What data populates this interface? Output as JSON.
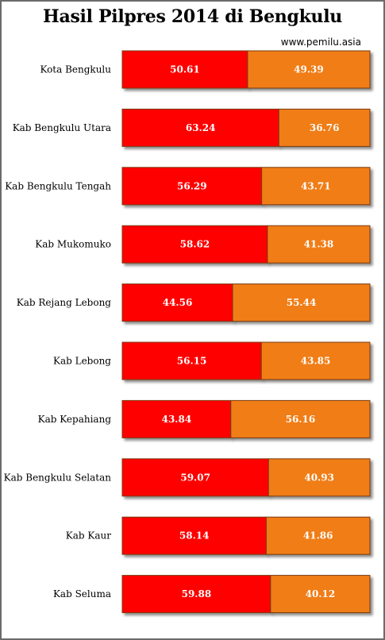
{
  "chart_data": {
    "type": "bar",
    "stacked": true,
    "orientation": "horizontal",
    "title": "Hasil Pilpres 2014 di Bengkulu",
    "source": "www.pemilu.asia",
    "categories": [
      "Kota  Bengkulu",
      "Kab Bengkulu  Utara",
      "Kab Bengkulu  Tengah",
      "Kab Mukomuko",
      "Kab Rejang  Lebong",
      "Kab Lebong",
      "Kab Kepahiang",
      "Kab Bengkulu  Selatan",
      "Kab Kaur",
      "Kab Seluma"
    ],
    "series": [
      {
        "values": [
          50.61,
          63.24,
          56.29,
          58.62,
          44.56,
          56.15,
          43.84,
          59.07,
          58.14,
          59.88
        ],
        "labels": [
          "50.61",
          "63.24",
          "56.29",
          "58.62",
          "44.56",
          "56.15",
          "43.84",
          "59.07",
          "58.14",
          "59.88"
        ],
        "color": "#ff0000"
      },
      {
        "values": [
          49.39,
          36.76,
          43.71,
          41.38,
          55.44,
          43.85,
          56.16,
          40.93,
          41.86,
          40.12
        ],
        "labels": [
          "49.39",
          "36.76",
          "43.71",
          "41.38",
          "55.44",
          "43.85",
          "56.16",
          "40.93",
          "41.86",
          "40.12"
        ],
        "color": "#f07d14"
      }
    ],
    "xlim": [
      0,
      100
    ],
    "grid": false,
    "legend": "none"
  }
}
